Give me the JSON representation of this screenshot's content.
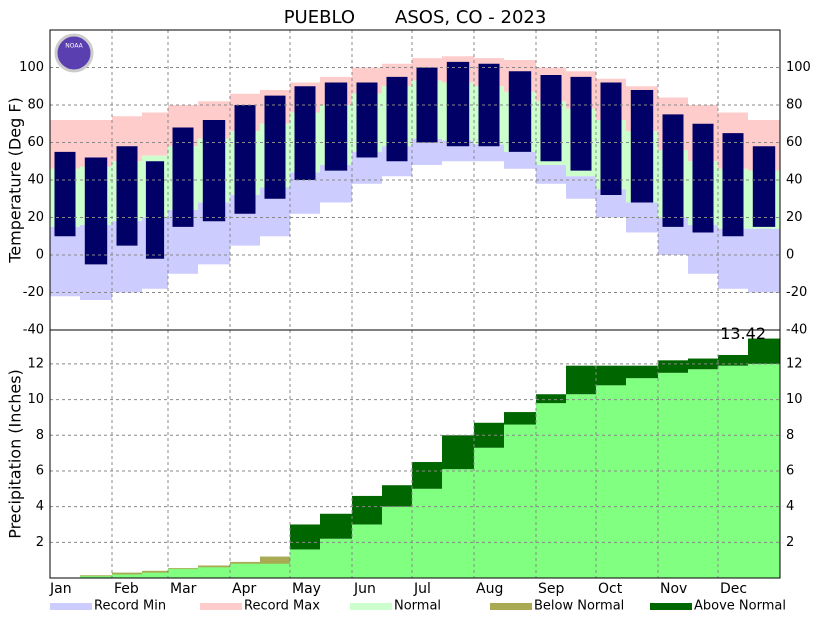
{
  "chart_data": [
    {
      "type": "temperature-range",
      "title": "PUEBLO       ASOS, CO - 2023",
      "logo_text": "NOAA",
      "y_label": "Temperature (Deg F)",
      "x": [
        0,
        15,
        31,
        46,
        59,
        74,
        90,
        105,
        120,
        135,
        151,
        166,
        181,
        196,
        212,
        227,
        243,
        258,
        273,
        288,
        304,
        319,
        334,
        349
      ],
      "xlim": [
        0,
        365
      ],
      "ylim": [
        -40,
        120
      ],
      "yticks": [
        -40,
        -20,
        0,
        20,
        40,
        60,
        80,
        100
      ],
      "grid": true,
      "series": [
        {
          "name": "Record Min",
          "color": "#ccccff",
          "values": [
            -22,
            -24,
            -20,
            -18,
            -10,
            -5,
            5,
            10,
            22,
            28,
            38,
            42,
            48,
            50,
            50,
            46,
            38,
            30,
            20,
            12,
            0,
            -10,
            -18,
            -20
          ]
        },
        {
          "name": "Record Max",
          "color": "#ffcccc",
          "values": [
            72,
            72,
            74,
            76,
            80,
            82,
            86,
            88,
            92,
            95,
            100,
            102,
            105,
            106,
            105,
            104,
            100,
            98,
            94,
            90,
            84,
            80,
            76,
            72
          ]
        },
        {
          "name": "Normal",
          "color": "#ccffcc",
          "low": [
            15,
            16,
            18,
            20,
            24,
            28,
            32,
            36,
            44,
            48,
            55,
            58,
            62,
            61,
            59,
            55,
            48,
            42,
            35,
            28,
            20,
            16,
            14,
            14
          ],
          "high": [
            46,
            47,
            50,
            53,
            58,
            62,
            66,
            70,
            76,
            80,
            86,
            90,
            93,
            92,
            90,
            87,
            82,
            78,
            72,
            66,
            56,
            50,
            46,
            45
          ]
        },
        {
          "color": "#000066",
          "low": [
            10,
            -5,
            5,
            -2,
            15,
            18,
            22,
            30,
            40,
            45,
            52,
            50,
            60,
            58,
            58,
            55,
            50,
            45,
            32,
            28,
            15,
            12,
            10,
            15
          ],
          "high": [
            55,
            52,
            58,
            50,
            68,
            72,
            80,
            85,
            90,
            92,
            92,
            95,
            100,
            103,
            102,
            98,
            96,
            95,
            92,
            88,
            75,
            70,
            65,
            58
          ]
        }
      ]
    },
    {
      "type": "cumulative-precip",
      "y_label": "Precipitation (Inches)",
      "annotation": "13.42",
      "x": [
        0,
        15,
        31,
        46,
        59,
        74,
        90,
        105,
        120,
        135,
        151,
        166,
        181,
        196,
        212,
        227,
        243,
        258,
        273,
        288,
        304,
        319,
        334,
        349
      ],
      "xlim": [
        0,
        365
      ],
      "xticks": [
        {
          "value": 0,
          "label": "Jan"
        },
        {
          "value": 31,
          "label": "Feb"
        },
        {
          "value": 59,
          "label": "Mar"
        },
        {
          "value": 90,
          "label": "Apr"
        },
        {
          "value": 120,
          "label": "May"
        },
        {
          "value": 151,
          "label": "Jun"
        },
        {
          "value": 181,
          "label": "Jul"
        },
        {
          "value": 212,
          "label": "Aug"
        },
        {
          "value": 243,
          "label": "Sep"
        },
        {
          "value": 273,
          "label": "Oct"
        },
        {
          "value": 304,
          "label": "Nov"
        },
        {
          "value": 334,
          "label": "Dec"
        }
      ],
      "ylim": [
        0,
        13.9
      ],
      "yticks": [
        2,
        4,
        6,
        8,
        10,
        12
      ],
      "grid": true,
      "normal": {
        "color": "#80ff80",
        "values": [
          0,
          0.15,
          0.3,
          0.4,
          0.55,
          0.7,
          0.9,
          1.2,
          1.6,
          2.2,
          3,
          4,
          5,
          6.1,
          7.3,
          8.6,
          9.8,
          10.3,
          10.8,
          11.2,
          11.5,
          11.7,
          11.9,
          12.0
        ]
      },
      "observed": {
        "values": [
          0,
          0.1,
          0.2,
          0.3,
          0.5,
          0.6,
          0.8,
          0.8,
          3,
          3.6,
          4.6,
          5.2,
          6.5,
          8,
          8.7,
          9.3,
          10.3,
          11.9,
          11.9,
          11.9,
          12.2,
          12.3,
          12.5,
          13.42
        ]
      },
      "fills": [
        {
          "name": "Below Normal",
          "color": "#aaaa55"
        },
        {
          "name": "Above Normal",
          "color": "#006600"
        }
      ]
    }
  ]
}
